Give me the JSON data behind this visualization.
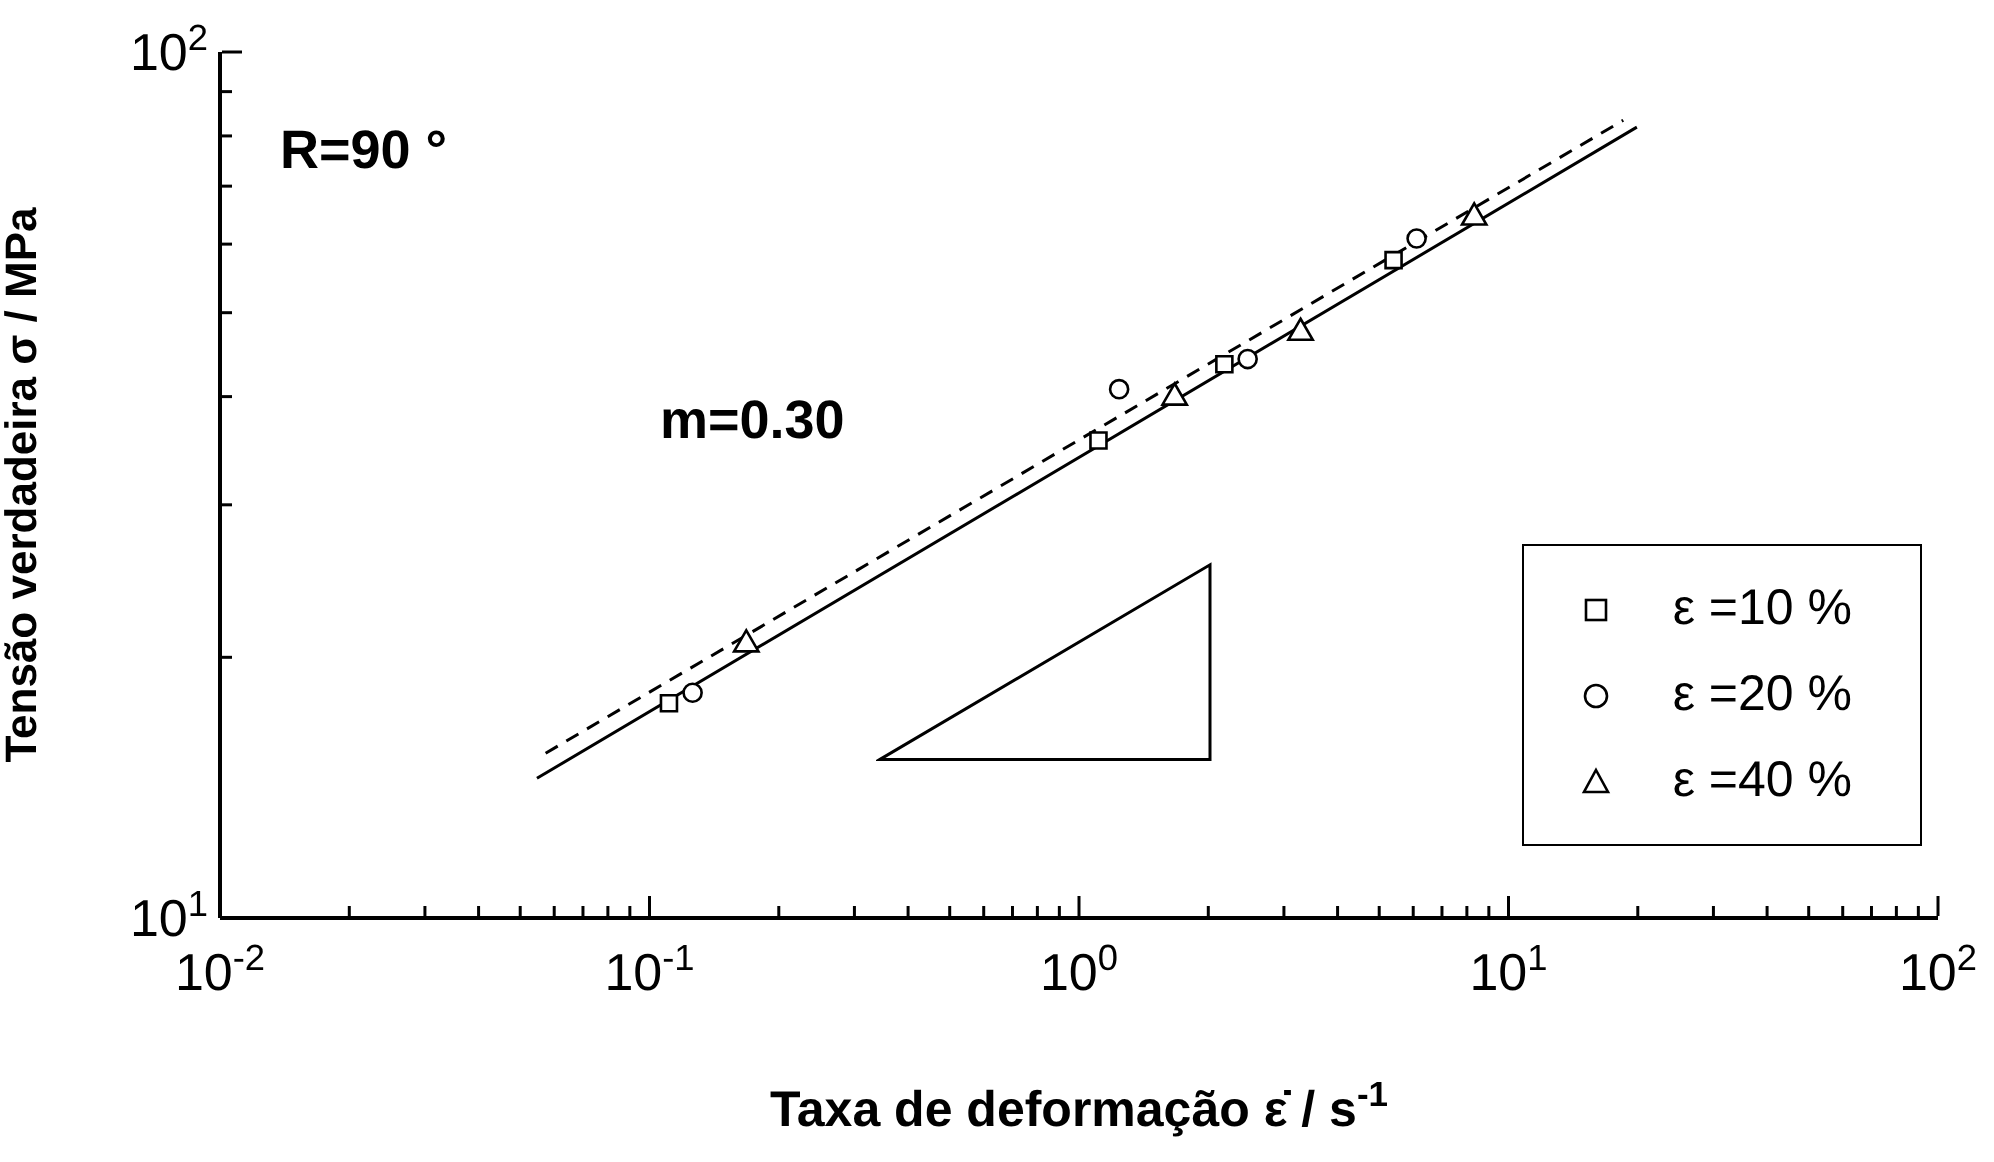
{
  "chart_data": {
    "type": "scatter",
    "xlabel": "Taxa de deformação ε̇ / s$^{-1}$",
    "ylabel": "Tensão verdadeira σ / MPa",
    "annotations": [
      "R=90 °",
      "m=0.30"
    ],
    "log": "xy",
    "xlim": [
      0.01,
      100
    ],
    "ylim": [
      10,
      100
    ],
    "xticks": [
      {
        "value": 0.01,
        "label": "10$^{-2}$"
      },
      {
        "value": 0.02,
        "label": null
      },
      {
        "value": 0.03,
        "label": null
      },
      {
        "value": 0.04,
        "label": null
      },
      {
        "value": 0.05,
        "label": null
      },
      {
        "value": 0.06,
        "label": null
      },
      {
        "value": 0.07,
        "label": null
      },
      {
        "value": 0.08,
        "label": null
      },
      {
        "value": 0.09,
        "label": null
      },
      {
        "value": 0.1,
        "label": "10$^{-1}$"
      },
      {
        "value": 0.2,
        "label": null
      },
      {
        "value": 0.3,
        "label": null
      },
      {
        "value": 0.4,
        "label": null
      },
      {
        "value": 0.5,
        "label": null
      },
      {
        "value": 0.6,
        "label": null
      },
      {
        "value": 0.7,
        "label": null
      },
      {
        "value": 0.8,
        "label": null
      },
      {
        "value": 0.9,
        "label": null
      },
      {
        "value": 1,
        "label": "10$^{0}$"
      },
      {
        "value": 2,
        "label": null
      },
      {
        "value": 3,
        "label": null
      },
      {
        "value": 4,
        "label": null
      },
      {
        "value": 5,
        "label": null
      },
      {
        "value": 6,
        "label": null
      },
      {
        "value": 7,
        "label": null
      },
      {
        "value": 8,
        "label": null
      },
      {
        "value": 9,
        "label": null
      },
      {
        "value": 10,
        "label": "10$^{1}$"
      },
      {
        "value": 20,
        "label": null
      },
      {
        "value": 30,
        "label": null
      },
      {
        "value": 40,
        "label": null
      },
      {
        "value": 50,
        "label": null
      },
      {
        "value": 60,
        "label": null
      },
      {
        "value": 70,
        "label": null
      },
      {
        "value": 80,
        "label": null
      },
      {
        "value": 90,
        "label": null
      },
      {
        "value": 100,
        "label": "10$^{2}$"
      }
    ],
    "yticks": [
      {
        "value": 10,
        "label": "10$^{1}$"
      },
      {
        "value": 20,
        "label": null
      },
      {
        "value": 30,
        "label": null
      },
      {
        "value": 40,
        "label": null
      },
      {
        "value": 50,
        "label": null
      },
      {
        "value": 60,
        "label": null
      },
      {
        "value": 70,
        "label": null
      },
      {
        "value": 80,
        "label": null
      },
      {
        "value": 90,
        "label": null
      },
      {
        "value": 100,
        "label": "10$^{2}$"
      }
    ],
    "legend": "bottom right",
    "series": [
      {
        "name": "ε =10 %",
        "marker": "square",
        "color": "#000000",
        "x": [
          0.111,
          1.11,
          2.18,
          5.4
        ],
        "values": [
          17.7,
          35.6,
          43.6,
          57.5
        ]
      },
      {
        "name": "ε =20 %",
        "marker": "circle",
        "color": "#000000",
        "x": [
          0.126,
          1.24,
          2.47,
          6.11
        ],
        "values": [
          18.2,
          40.8,
          44.2,
          60.9
        ]
      },
      {
        "name": "ε =40 %",
        "marker": "triangle",
        "color": "#000000",
        "x": [
          0.168,
          1.67,
          3.28,
          8.32
        ],
        "values": [
          20.7,
          39.9,
          47.4,
          64.4
        ]
      },
      {
        "type": "line",
        "line_style": "solid",
        "marker": "none",
        "color": "#000000",
        "x": [
          0.0547,
          19.9
        ],
        "values": [
          14.5,
          81.9
        ]
      },
      {
        "type": "line",
        "line_style": "dashed",
        "marker": "none",
        "color": "#000000",
        "x": [
          0.0573,
          18.5
        ],
        "values": [
          15.5,
          83.4
        ]
      }
    ]
  }
}
